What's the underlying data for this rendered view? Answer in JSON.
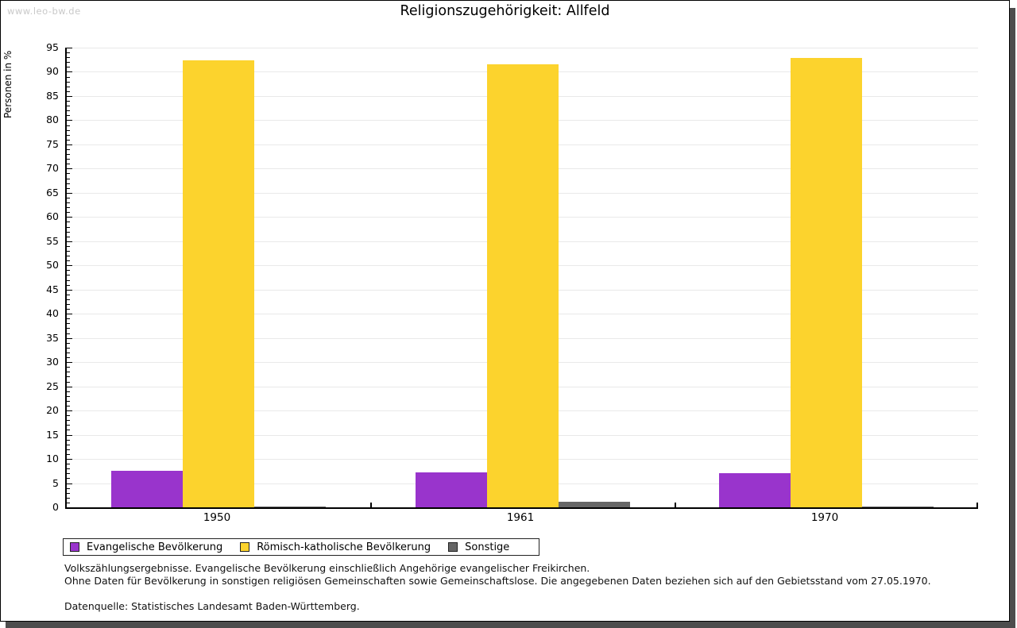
{
  "watermark": "www.leo-bw.de",
  "chart_data": {
    "type": "bar",
    "title": "Religionszugehörigkeit: Allfeld",
    "ylabel": "Personen in %",
    "xlabel": "",
    "ylim": [
      0,
      95
    ],
    "ytick_step": 5,
    "minor_tick_step": 1,
    "grid": true,
    "legend_position": "bottom-left",
    "categories": [
      "1950",
      "1961",
      "1970"
    ],
    "series": [
      {
        "name": "Evangelische Bevölkerung",
        "color": "#9934cc",
        "values": [
          7.5,
          7.3,
          7.1
        ]
      },
      {
        "name": "Römisch-katholische Bevölkerung",
        "color": "#fcd32d",
        "values": [
          92.3,
          91.5,
          92.8
        ]
      },
      {
        "name": "Sonstige",
        "color": "#666666",
        "values": [
          0.2,
          1.2,
          0.2
        ]
      }
    ]
  },
  "footnotes": {
    "line1": "Volkszählungsergebnisse. Evangelische Bevölkerung einschließlich Angehörige evangelischer Freikirchen.",
    "line2": "Ohne Daten für Bevölkerung in sonstigen religiösen Gemeinschaften sowie Gemeinschaftslose. Die angegebenen Daten beziehen sich auf den Gebietsstand vom 27.05.1970.",
    "source": "Datenquelle: Statistisches Landesamt Baden-Württemberg."
  },
  "colors": {
    "accent_purple": "#9934cc",
    "accent_yellow": "#fcd32d",
    "accent_gray": "#666666",
    "gridline": "#e9e9e9",
    "frame_shadow": "#4d4d4d",
    "watermark": "#c9c9c9"
  }
}
